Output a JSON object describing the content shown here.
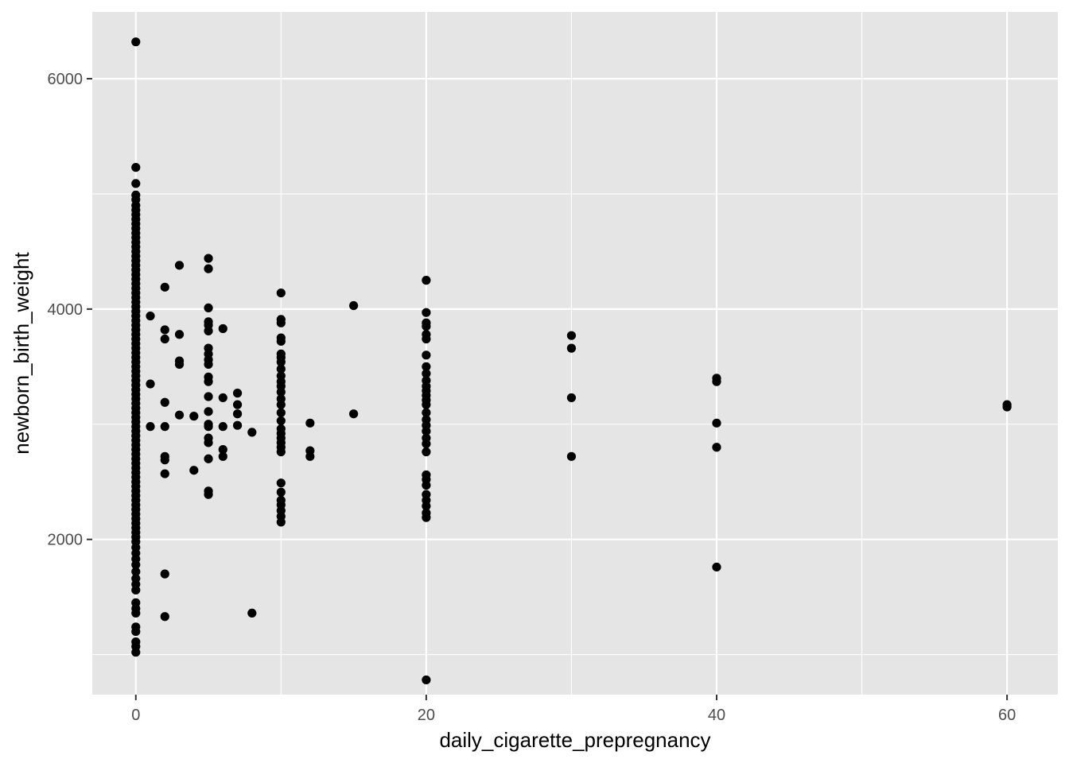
{
  "chart_data": {
    "type": "scatter",
    "title": "",
    "xlabel": "daily_cigarette_prepregnancy",
    "ylabel": "newborn_birth_weight",
    "xlim": [
      -3,
      63.5
    ],
    "ylim": [
      652,
      6580
    ],
    "x_ticks": [
      0,
      20,
      40,
      60
    ],
    "y_ticks": [
      2000,
      4000,
      6000
    ],
    "x_minor": [
      10,
      30,
      50
    ],
    "y_minor": [
      1000,
      3000,
      5000
    ],
    "grid": true,
    "colors": {
      "panel": "#e5e5e5",
      "grid": "#ffffff",
      "point": "#000000",
      "tick_text": "#4d4d4d",
      "tick_mark": "#333333"
    },
    "series": [
      {
        "points": [
          [
            0,
            6320
          ],
          [
            0,
            5230
          ],
          [
            0,
            5090
          ],
          [
            0,
            4990
          ],
          [
            0,
            4950
          ],
          [
            0,
            4900
          ],
          [
            0,
            4860
          ],
          [
            0,
            4820
          ],
          [
            0,
            4780
          ],
          [
            0,
            4740
          ],
          [
            0,
            4700
          ],
          [
            0,
            4660
          ],
          [
            0,
            4620
          ],
          [
            0,
            4580
          ],
          [
            0,
            4540
          ],
          [
            0,
            4500
          ],
          [
            0,
            4460
          ],
          [
            0,
            4420
          ],
          [
            0,
            4380
          ],
          [
            0,
            4340
          ],
          [
            0,
            4300
          ],
          [
            0,
            4260
          ],
          [
            0,
            4220
          ],
          [
            0,
            4180
          ],
          [
            0,
            4140
          ],
          [
            0,
            4100
          ],
          [
            0,
            4060
          ],
          [
            0,
            4020
          ],
          [
            0,
            3980
          ],
          [
            0,
            3940
          ],
          [
            0,
            3900
          ],
          [
            0,
            3860
          ],
          [
            0,
            3820
          ],
          [
            0,
            3780
          ],
          [
            0,
            3740
          ],
          [
            0,
            3700
          ],
          [
            0,
            3660
          ],
          [
            0,
            3620
          ],
          [
            0,
            3580
          ],
          [
            0,
            3540
          ],
          [
            0,
            3500
          ],
          [
            0,
            3460
          ],
          [
            0,
            3420
          ],
          [
            0,
            3380
          ],
          [
            0,
            3340
          ],
          [
            0,
            3300
          ],
          [
            0,
            3260
          ],
          [
            0,
            3220
          ],
          [
            0,
            3180
          ],
          [
            0,
            3140
          ],
          [
            0,
            3100
          ],
          [
            0,
            3060
          ],
          [
            0,
            3020
          ],
          [
            0,
            2980
          ],
          [
            0,
            2940
          ],
          [
            0,
            2900
          ],
          [
            0,
            2860
          ],
          [
            0,
            2820
          ],
          [
            0,
            2780
          ],
          [
            0,
            2740
          ],
          [
            0,
            2700
          ],
          [
            0,
            2660
          ],
          [
            0,
            2620
          ],
          [
            0,
            2580
          ],
          [
            0,
            2540
          ],
          [
            0,
            2500
          ],
          [
            0,
            2460
          ],
          [
            0,
            2420
          ],
          [
            0,
            2380
          ],
          [
            0,
            2340
          ],
          [
            0,
            2300
          ],
          [
            0,
            2260
          ],
          [
            0,
            2220
          ],
          [
            0,
            2180
          ],
          [
            0,
            2140
          ],
          [
            0,
            2100
          ],
          [
            0,
            2060
          ],
          [
            0,
            2020
          ],
          [
            0,
            1980
          ],
          [
            0,
            1930
          ],
          [
            0,
            1880
          ],
          [
            0,
            1830
          ],
          [
            0,
            1780
          ],
          [
            0,
            1720
          ],
          [
            0,
            1660
          ],
          [
            0,
            1610
          ],
          [
            0,
            1560
          ],
          [
            0,
            1450
          ],
          [
            0,
            1400
          ],
          [
            0,
            1360
          ],
          [
            0,
            1240
          ],
          [
            0,
            1200
          ],
          [
            0,
            1110
          ],
          [
            0,
            1070
          ],
          [
            0,
            1020
          ],
          [
            1,
            3940
          ],
          [
            1,
            3350
          ],
          [
            1,
            2980
          ],
          [
            2,
            4190
          ],
          [
            2,
            3820
          ],
          [
            2,
            3740
          ],
          [
            2,
            3190
          ],
          [
            2,
            2980
          ],
          [
            2,
            2720
          ],
          [
            2,
            2690
          ],
          [
            2,
            2570
          ],
          [
            2,
            1700
          ],
          [
            2,
            1330
          ],
          [
            3,
            4380
          ],
          [
            3,
            3780
          ],
          [
            3,
            3550
          ],
          [
            3,
            3520
          ],
          [
            3,
            3080
          ],
          [
            4,
            3070
          ],
          [
            4,
            2600
          ],
          [
            5,
            4440
          ],
          [
            5,
            4350
          ],
          [
            5,
            4010
          ],
          [
            5,
            3890
          ],
          [
            5,
            3860
          ],
          [
            5,
            3810
          ],
          [
            5,
            3660
          ],
          [
            5,
            3610
          ],
          [
            5,
            3560
          ],
          [
            5,
            3520
          ],
          [
            5,
            3410
          ],
          [
            5,
            3370
          ],
          [
            5,
            3240
          ],
          [
            5,
            3110
          ],
          [
            5,
            3000
          ],
          [
            5,
            2980
          ],
          [
            5,
            2880
          ],
          [
            5,
            2840
          ],
          [
            5,
            2700
          ],
          [
            5,
            2420
          ],
          [
            5,
            2390
          ],
          [
            6,
            3830
          ],
          [
            6,
            3230
          ],
          [
            6,
            2980
          ],
          [
            6,
            2780
          ],
          [
            6,
            2720
          ],
          [
            7,
            3270
          ],
          [
            7,
            3170
          ],
          [
            7,
            3090
          ],
          [
            7,
            2990
          ],
          [
            8,
            2930
          ],
          [
            8,
            1360
          ],
          [
            10,
            4140
          ],
          [
            10,
            3910
          ],
          [
            10,
            3880
          ],
          [
            10,
            3750
          ],
          [
            10,
            3720
          ],
          [
            10,
            3610
          ],
          [
            10,
            3580
          ],
          [
            10,
            3540
          ],
          [
            10,
            3480
          ],
          [
            10,
            3420
          ],
          [
            10,
            3370
          ],
          [
            10,
            3330
          ],
          [
            10,
            3280
          ],
          [
            10,
            3220
          ],
          [
            10,
            3170
          ],
          [
            10,
            3100
          ],
          [
            10,
            3030
          ],
          [
            10,
            2960
          ],
          [
            10,
            2920
          ],
          [
            10,
            2880
          ],
          [
            10,
            2840
          ],
          [
            10,
            2800
          ],
          [
            10,
            2760
          ],
          [
            10,
            2490
          ],
          [
            10,
            2410
          ],
          [
            10,
            2340
          ],
          [
            10,
            2300
          ],
          [
            10,
            2250
          ],
          [
            10,
            2200
          ],
          [
            10,
            2150
          ],
          [
            12,
            3010
          ],
          [
            12,
            2770
          ],
          [
            12,
            2720
          ],
          [
            15,
            4030
          ],
          [
            15,
            3090
          ],
          [
            20,
            4250
          ],
          [
            20,
            3970
          ],
          [
            20,
            3880
          ],
          [
            20,
            3850
          ],
          [
            20,
            3780
          ],
          [
            20,
            3740
          ],
          [
            20,
            3600
          ],
          [
            20,
            3500
          ],
          [
            20,
            3440
          ],
          [
            20,
            3380
          ],
          [
            20,
            3330
          ],
          [
            20,
            3290
          ],
          [
            20,
            3250
          ],
          [
            20,
            3210
          ],
          [
            20,
            3170
          ],
          [
            20,
            3100
          ],
          [
            20,
            3040
          ],
          [
            20,
            2990
          ],
          [
            20,
            2940
          ],
          [
            20,
            2880
          ],
          [
            20,
            2830
          ],
          [
            20,
            2760
          ],
          [
            20,
            2560
          ],
          [
            20,
            2520
          ],
          [
            20,
            2470
          ],
          [
            20,
            2390
          ],
          [
            20,
            2340
          ],
          [
            20,
            2290
          ],
          [
            20,
            2230
          ],
          [
            20,
            2190
          ],
          [
            20,
            780
          ],
          [
            30,
            3770
          ],
          [
            30,
            3660
          ],
          [
            30,
            3230
          ],
          [
            30,
            2720
          ],
          [
            40,
            3400
          ],
          [
            40,
            3370
          ],
          [
            40,
            3010
          ],
          [
            40,
            2800
          ],
          [
            40,
            1760
          ],
          [
            60,
            3170
          ],
          [
            60,
            3150
          ]
        ]
      }
    ]
  }
}
